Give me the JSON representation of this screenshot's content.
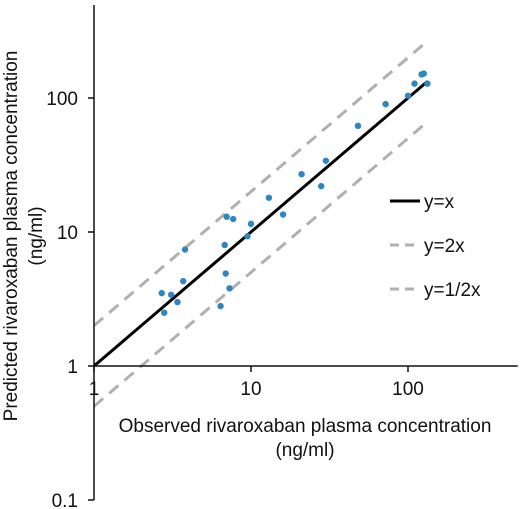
{
  "chart_data": {
    "type": "scatter",
    "xscale": "log",
    "yscale": "log",
    "xlabel": "Observed rivaroxaban plasma concentration",
    "xlabel_unit": "(ng/ml)",
    "ylabel": "Predicted rivaroxaban plasma concentration",
    "ylabel_unit": "(ng/ml)",
    "xlim": [
      1,
      500
    ],
    "ylim": [
      0.1,
      500
    ],
    "x_ticks": [
      "1",
      "10",
      "100"
    ],
    "y_ticks": [
      "0.1",
      "1",
      "10",
      "100"
    ],
    "grid": false,
    "legend_position": "right",
    "points": {
      "color": "#2e86c1",
      "x": [
        2.7,
        2.8,
        3.1,
        3.4,
        3.7,
        3.8,
        6.4,
        6.8,
        6.9,
        7.0,
        7.3,
        7.7,
        9.5,
        10.0,
        13.0,
        16.0,
        21.0,
        28.0,
        30.0,
        48.0,
        72.0,
        100.0,
        110.0,
        122.0,
        126.0,
        133.0
      ],
      "y": [
        3.5,
        2.5,
        3.4,
        3.0,
        4.3,
        7.4,
        2.8,
        8.0,
        4.9,
        13.0,
        3.8,
        12.5,
        9.3,
        11.5,
        18.0,
        13.5,
        27.0,
        22.0,
        34.0,
        62.0,
        90.0,
        104.0,
        128.0,
        150.0,
        152.0,
        128.0
      ]
    },
    "lines": [
      {
        "name": "y=x",
        "factor": 1,
        "style": "solid",
        "color": "#000000"
      },
      {
        "name": "y=2x",
        "factor": 2,
        "style": "dashed",
        "color": "#b0b0b0"
      },
      {
        "name": "y=1/2x",
        "factor": 0.5,
        "style": "dashed",
        "color": "#b0b0b0"
      }
    ]
  }
}
